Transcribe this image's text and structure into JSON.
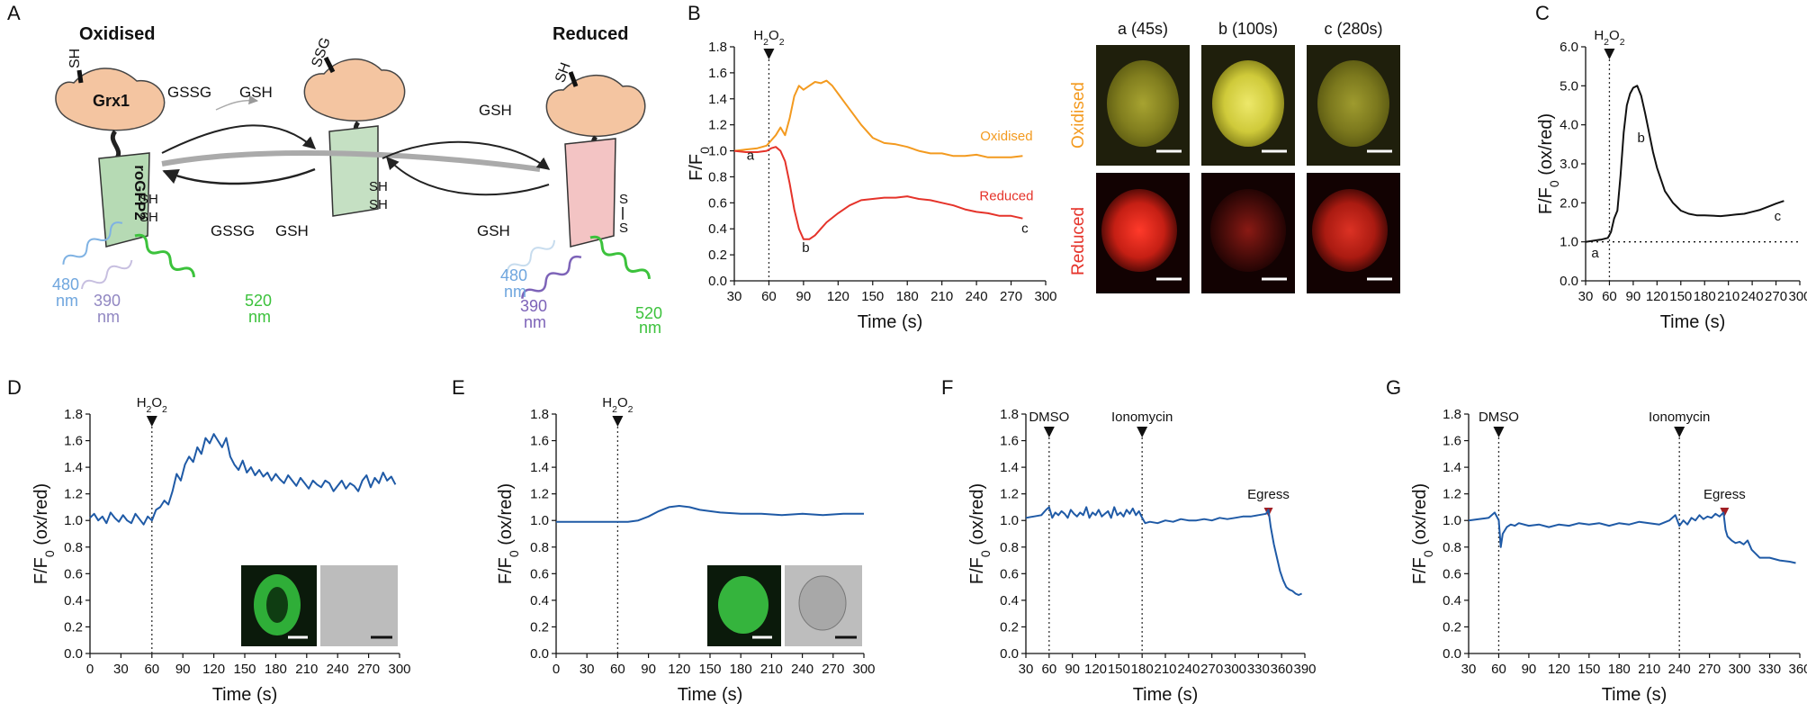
{
  "figure": {
    "panel_labels": [
      "A",
      "B",
      "C",
      "D",
      "E",
      "F",
      "G"
    ],
    "colors": {
      "oxidised": "#f39a1f",
      "reduced": "#e5332a",
      "blue": "#1f5aa6",
      "black": "#111111",
      "egress": "#a01e23"
    }
  },
  "diagram": {
    "oxidised_title": "Oxidised",
    "reduced_title": "Reduced",
    "grx1": "Grx1",
    "rogfp2": "roGFP2",
    "sh": "SH",
    "ssg": "SSG",
    "s": "S",
    "gssg": "GSSG",
    "gsh": "GSH",
    "wl_480": "480",
    "wl_390": "390",
    "wl_520": "520",
    "nm": "nm"
  },
  "micrographs": {
    "col_labels": [
      "a (45s)",
      "b (100s)",
      "c (280s)"
    ],
    "row_labels": [
      "Oxidised",
      "Reduced"
    ]
  },
  "chart_data": [
    {
      "id": "B",
      "type": "line",
      "xlabel": "Time (s)",
      "ylabel": "F/F0",
      "ylabel_main": "F/F",
      "ylabel_sub": "0",
      "xlim": [
        30,
        300
      ],
      "ylim": [
        0,
        1.8
      ],
      "xticks": [
        30,
        60,
        90,
        120,
        150,
        180,
        210,
        240,
        270,
        300
      ],
      "yticks": [
        0,
        0.2,
        0.4,
        0.6,
        0.8,
        1.0,
        1.2,
        1.4,
        1.6,
        1.8
      ],
      "event": {
        "x": 60,
        "label": "H2O2",
        "label_main": "H",
        "label_sub": "2",
        "label_mid": "O",
        "label_sub2": "2"
      },
      "series": [
        {
          "name": "Oxidised",
          "color": "#f39a1f",
          "x": [
            30,
            40,
            50,
            58,
            62,
            66,
            70,
            74,
            78,
            82,
            86,
            90,
            95,
            100,
            105,
            110,
            115,
            120,
            125,
            130,
            140,
            150,
            160,
            170,
            180,
            190,
            200,
            210,
            220,
            230,
            240,
            250,
            260,
            270,
            280
          ],
          "y": [
            1.0,
            1.01,
            1.02,
            1.04,
            1.08,
            1.12,
            1.18,
            1.12,
            1.25,
            1.42,
            1.5,
            1.47,
            1.5,
            1.53,
            1.52,
            1.54,
            1.5,
            1.44,
            1.38,
            1.32,
            1.2,
            1.1,
            1.06,
            1.05,
            1.03,
            1.0,
            0.98,
            0.98,
            0.96,
            0.96,
            0.97,
            0.95,
            0.95,
            0.95,
            0.96
          ]
        },
        {
          "name": "Reduced",
          "color": "#e5332a",
          "x": [
            30,
            40,
            50,
            58,
            62,
            66,
            70,
            74,
            78,
            82,
            86,
            90,
            95,
            100,
            105,
            110,
            120,
            130,
            140,
            150,
            160,
            170,
            180,
            190,
            200,
            210,
            220,
            230,
            240,
            250,
            260,
            270,
            280
          ],
          "y": [
            1.0,
            0.99,
            0.99,
            1.0,
            1.02,
            1.03,
            1.0,
            0.92,
            0.75,
            0.55,
            0.4,
            0.32,
            0.32,
            0.35,
            0.4,
            0.45,
            0.52,
            0.58,
            0.62,
            0.63,
            0.64,
            0.64,
            0.65,
            0.63,
            0.62,
            0.6,
            0.58,
            0.55,
            0.53,
            0.52,
            0.5,
            0.5,
            0.48
          ]
        }
      ],
      "annotations": [
        {
          "label": "a",
          "x": 44,
          "y": 0.93
        },
        {
          "label": "b",
          "x": 92,
          "y": 0.22
        },
        {
          "label": "c",
          "x": 282,
          "y": 0.37
        },
        {
          "label": "Oxidised",
          "x": 266,
          "y": 1.08,
          "color": "#f39a1f"
        },
        {
          "label": "Reduced",
          "x": 266,
          "y": 0.62,
          "color": "#e5332a"
        }
      ]
    },
    {
      "id": "C",
      "type": "line",
      "xlabel": "Time (s)",
      "ylabel": "F/F0 (ox/red)",
      "ylabel_main": "F/F",
      "ylabel_sub": "0",
      "ylabel_tail": " (ox/red)",
      "xlim": [
        30,
        300
      ],
      "ylim": [
        0,
        6.0
      ],
      "xticks": [
        30,
        60,
        90,
        120,
        150,
        180,
        210,
        240,
        270,
        300
      ],
      "yticks": [
        0,
        1.0,
        2.0,
        3.0,
        4.0,
        5.0,
        6.0
      ],
      "event": {
        "x": 60,
        "label": "H2O2",
        "label_main": "H",
        "label_sub": "2",
        "label_mid": "O",
        "label_sub2": "2"
      },
      "baseline": 1.0,
      "series": [
        {
          "name": "ox/red",
          "color": "#111111",
          "x": [
            30,
            40,
            50,
            58,
            62,
            66,
            70,
            74,
            78,
            82,
            86,
            90,
            95,
            100,
            105,
            110,
            115,
            120,
            130,
            140,
            150,
            160,
            170,
            180,
            190,
            200,
            210,
            220,
            230,
            240,
            250,
            260,
            270,
            280
          ],
          "y": [
            1.0,
            1.03,
            1.06,
            1.1,
            1.25,
            1.6,
            1.8,
            2.7,
            3.8,
            4.5,
            4.8,
            4.95,
            5.0,
            4.75,
            4.3,
            3.8,
            3.3,
            2.9,
            2.3,
            2.0,
            1.8,
            1.72,
            1.68,
            1.68,
            1.67,
            1.66,
            1.68,
            1.7,
            1.72,
            1.77,
            1.82,
            1.9,
            1.98,
            2.05
          ]
        }
      ],
      "annotations": [
        {
          "label": "a",
          "x": 42,
          "y": 0.6
        },
        {
          "label": "b",
          "x": 100,
          "y": 3.55
        },
        {
          "label": "c",
          "x": 272,
          "y": 1.55
        }
      ]
    },
    {
      "id": "D",
      "type": "line",
      "xlabel": "Time (s)",
      "ylabel": "F/F0 (ox/red)",
      "ylabel_main": "F/F",
      "ylabel_sub": "0",
      "ylabel_tail": " (ox/red)",
      "xlim": [
        0,
        300
      ],
      "ylim": [
        0,
        1.8
      ],
      "xticks": [
        0,
        30,
        60,
        90,
        120,
        150,
        180,
        210,
        240,
        270,
        300
      ],
      "yticks": [
        0,
        0.2,
        0.4,
        0.6,
        0.8,
        1.0,
        1.2,
        1.4,
        1.6,
        1.8
      ],
      "event": {
        "x": 60,
        "label": "H2O2",
        "label_main": "H",
        "label_sub": "2",
        "label_mid": "O",
        "label_sub2": "2"
      },
      "series": [
        {
          "name": "ox/red",
          "color": "#1f5aa6",
          "x": [
            0,
            4,
            8,
            12,
            16,
            20,
            24,
            28,
            32,
            36,
            40,
            44,
            48,
            52,
            56,
            60,
            64,
            68,
            72,
            76,
            80,
            84,
            88,
            92,
            96,
            100,
            104,
            108,
            112,
            116,
            120,
            124,
            128,
            132,
            136,
            140,
            144,
            148,
            152,
            156,
            160,
            164,
            168,
            172,
            176,
            180,
            184,
            188,
            192,
            196,
            200,
            204,
            208,
            212,
            216,
            220,
            224,
            228,
            232,
            236,
            240,
            244,
            248,
            252,
            256,
            260,
            264,
            268,
            272,
            276,
            280,
            284,
            288,
            292,
            296
          ],
          "y": [
            1.02,
            1.05,
            1.0,
            1.03,
            0.98,
            1.06,
            1.02,
            0.99,
            1.04,
            1.0,
            0.98,
            1.05,
            1.01,
            0.97,
            1.03,
            1.0,
            1.08,
            1.1,
            1.15,
            1.12,
            1.22,
            1.35,
            1.3,
            1.42,
            1.48,
            1.44,
            1.55,
            1.5,
            1.62,
            1.58,
            1.65,
            1.6,
            1.55,
            1.62,
            1.48,
            1.42,
            1.38,
            1.45,
            1.36,
            1.4,
            1.34,
            1.38,
            1.33,
            1.36,
            1.3,
            1.35,
            1.31,
            1.28,
            1.34,
            1.3,
            1.26,
            1.32,
            1.28,
            1.24,
            1.3,
            1.27,
            1.25,
            1.3,
            1.28,
            1.22,
            1.26,
            1.3,
            1.24,
            1.28,
            1.26,
            1.22,
            1.3,
            1.34,
            1.25,
            1.32,
            1.28,
            1.36,
            1.3,
            1.33,
            1.27
          ]
        }
      ]
    },
    {
      "id": "E",
      "type": "line",
      "xlabel": "Time (s)",
      "ylabel": "F/F0 (ox/red)",
      "ylabel_main": "F/F",
      "ylabel_sub": "0",
      "ylabel_tail": " (ox/red)",
      "xlim": [
        0,
        300
      ],
      "ylim": [
        0,
        1.8
      ],
      "xticks": [
        0,
        30,
        60,
        90,
        120,
        150,
        180,
        210,
        240,
        270,
        300
      ],
      "yticks": [
        0,
        0.2,
        0.4,
        0.6,
        0.8,
        1.0,
        1.2,
        1.4,
        1.6,
        1.8
      ],
      "event": {
        "x": 60,
        "label": "H2O2",
        "label_main": "H",
        "label_sub": "2",
        "label_mid": "O",
        "label_sub2": "2"
      },
      "series": [
        {
          "name": "ox/red",
          "color": "#1f5aa6",
          "x": [
            0,
            20,
            40,
            60,
            70,
            80,
            90,
            100,
            110,
            120,
            130,
            140,
            150,
            160,
            180,
            200,
            220,
            240,
            260,
            280,
            300
          ],
          "y": [
            0.99,
            0.99,
            0.99,
            0.99,
            0.99,
            1.0,
            1.03,
            1.07,
            1.1,
            1.11,
            1.1,
            1.08,
            1.07,
            1.06,
            1.05,
            1.05,
            1.04,
            1.05,
            1.04,
            1.05,
            1.05
          ]
        }
      ]
    },
    {
      "id": "F",
      "type": "line",
      "xlabel": "Time (s)",
      "ylabel": "F/F0 (ox/red)",
      "ylabel_main": "F/F",
      "ylabel_sub": "0",
      "ylabel_tail": " (ox/red)",
      "xlim": [
        30,
        390
      ],
      "ylim": [
        0,
        1.8
      ],
      "xticks": [
        30,
        60,
        90,
        120,
        150,
        180,
        210,
        240,
        270,
        300,
        330,
        360,
        390
      ],
      "yticks": [
        0,
        0.2,
        0.4,
        0.6,
        0.8,
        1.0,
        1.2,
        1.4,
        1.6,
        1.8
      ],
      "events": [
        {
          "x": 60,
          "label": "DMSO",
          "color": "#111111",
          "line": true
        },
        {
          "x": 180,
          "label": "Ionomycin",
          "color": "#111111",
          "line": true
        },
        {
          "x": 343,
          "label": "Egress",
          "color": "#a01e23",
          "line": false
        }
      ],
      "series": [
        {
          "name": "ox/red",
          "color": "#1f5aa6",
          "x": [
            30,
            40,
            50,
            56,
            60,
            64,
            68,
            72,
            76,
            80,
            84,
            88,
            92,
            96,
            100,
            104,
            108,
            112,
            116,
            120,
            124,
            128,
            132,
            136,
            140,
            144,
            148,
            152,
            156,
            160,
            164,
            168,
            172,
            176,
            180,
            184,
            190,
            200,
            210,
            220,
            230,
            240,
            250,
            260,
            270,
            280,
            290,
            300,
            310,
            320,
            330,
            340,
            343,
            346,
            350,
            354,
            358,
            362,
            366,
            370,
            374,
            378,
            382,
            386
          ],
          "y": [
            1.02,
            1.03,
            1.04,
            1.08,
            1.1,
            1.02,
            1.06,
            1.04,
            1.07,
            1.05,
            1.02,
            1.08,
            1.05,
            1.03,
            1.06,
            1.04,
            1.1,
            1.02,
            1.06,
            1.04,
            1.08,
            1.03,
            1.05,
            1.07,
            1.02,
            1.1,
            1.04,
            1.06,
            1.03,
            1.08,
            1.05,
            1.09,
            1.04,
            1.07,
            1.02,
            0.98,
            0.99,
            0.98,
            1.0,
            0.99,
            1.01,
            1.0,
            1.0,
            1.01,
            1.0,
            1.02,
            1.01,
            1.02,
            1.03,
            1.03,
            1.04,
            1.05,
            1.08,
            0.95,
            0.82,
            0.72,
            0.62,
            0.55,
            0.5,
            0.48,
            0.47,
            0.45,
            0.44,
            0.45
          ]
        }
      ]
    },
    {
      "id": "G",
      "type": "line",
      "xlabel": "Time (s)",
      "ylabel": "F/F0 (ox/red)",
      "ylabel_main": "F/F",
      "ylabel_sub": "0",
      "ylabel_tail": " (ox/red)",
      "xlim": [
        30,
        360
      ],
      "ylim": [
        0,
        1.8
      ],
      "xticks": [
        30,
        60,
        90,
        120,
        150,
        180,
        210,
        240,
        270,
        300,
        330,
        360
      ],
      "yticks": [
        0,
        0.2,
        0.4,
        0.6,
        0.8,
        1.0,
        1.2,
        1.4,
        1.6,
        1.8
      ],
      "events": [
        {
          "x": 60,
          "label": "DMSO",
          "color": "#111111",
          "line": true
        },
        {
          "x": 240,
          "label": "Ionomycin",
          "color": "#111111",
          "line": true
        },
        {
          "x": 285,
          "label": "Egress",
          "color": "#a01e23",
          "line": false
        }
      ],
      "series": [
        {
          "name": "ox/red",
          "color": "#1f5aa6",
          "x": [
            30,
            40,
            50,
            56,
            60,
            62,
            64,
            68,
            72,
            76,
            80,
            90,
            100,
            110,
            120,
            130,
            140,
            150,
            160,
            170,
            180,
            190,
            200,
            210,
            220,
            230,
            236,
            240,
            244,
            248,
            252,
            256,
            260,
            264,
            268,
            272,
            276,
            280,
            284,
            286,
            288,
            292,
            296,
            300,
            304,
            308,
            312,
            320,
            330,
            340,
            350,
            356
          ],
          "y": [
            1.0,
            1.01,
            1.02,
            1.06,
            1.0,
            0.8,
            0.9,
            0.95,
            0.97,
            0.96,
            0.98,
            0.96,
            0.97,
            0.95,
            0.97,
            0.96,
            0.98,
            0.97,
            0.98,
            0.96,
            0.98,
            0.97,
            0.99,
            0.98,
            0.97,
            1.0,
            1.04,
            0.96,
            1.0,
            0.97,
            1.02,
            1.0,
            1.04,
            1.01,
            1.03,
            1.02,
            1.05,
            1.03,
            1.06,
            0.93,
            0.88,
            0.85,
            0.83,
            0.84,
            0.82,
            0.85,
            0.78,
            0.72,
            0.72,
            0.7,
            0.69,
            0.68
          ]
        }
      ]
    }
  ]
}
